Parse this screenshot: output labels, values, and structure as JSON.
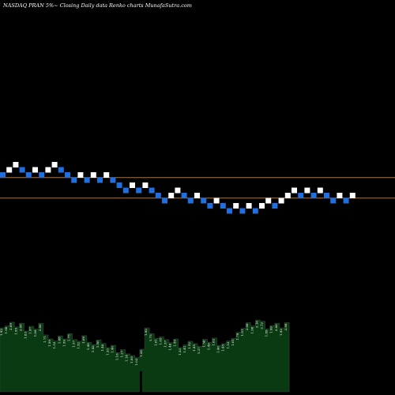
{
  "chart_data": {
    "type": "renko",
    "title": "NASDAQ PRAN 5%~ Closing Daily data Renko charts MunafaSutra.com",
    "colors": {
      "background": "#000000",
      "up_brick": "#ffffff",
      "down_brick": "#1f6fe0",
      "reference_line": "#b87333",
      "volume_fill": "#0a3a12",
      "volume_stroke": "#3c3c3c"
    },
    "bricks": [
      {
        "level": 10,
        "dir": "down"
      },
      {
        "level": 11,
        "dir": "up"
      },
      {
        "level": 12,
        "dir": "up"
      },
      {
        "level": 11,
        "dir": "down"
      },
      {
        "level": 10,
        "dir": "down"
      },
      {
        "level": 11,
        "dir": "up"
      },
      {
        "level": 10,
        "dir": "down"
      },
      {
        "level": 11,
        "dir": "up"
      },
      {
        "level": 12,
        "dir": "up"
      },
      {
        "level": 11,
        "dir": "down"
      },
      {
        "level": 10,
        "dir": "down"
      },
      {
        "level": 9,
        "dir": "down"
      },
      {
        "level": 10,
        "dir": "up"
      },
      {
        "level": 9,
        "dir": "down"
      },
      {
        "level": 10,
        "dir": "up"
      },
      {
        "level": 9,
        "dir": "down"
      },
      {
        "level": 10,
        "dir": "up"
      },
      {
        "level": 9,
        "dir": "down"
      },
      {
        "level": 8,
        "dir": "down"
      },
      {
        "level": 7,
        "dir": "down"
      },
      {
        "level": 8,
        "dir": "up"
      },
      {
        "level": 7,
        "dir": "down"
      },
      {
        "level": 8,
        "dir": "up"
      },
      {
        "level": 7,
        "dir": "down"
      },
      {
        "level": 6,
        "dir": "down"
      },
      {
        "level": 5,
        "dir": "down"
      },
      {
        "level": 6,
        "dir": "up"
      },
      {
        "level": 7,
        "dir": "up"
      },
      {
        "level": 6,
        "dir": "down"
      },
      {
        "level": 5,
        "dir": "down"
      },
      {
        "level": 6,
        "dir": "up"
      },
      {
        "level": 5,
        "dir": "down"
      },
      {
        "level": 4,
        "dir": "down"
      },
      {
        "level": 5,
        "dir": "up"
      },
      {
        "level": 4,
        "dir": "down"
      },
      {
        "level": 3,
        "dir": "down"
      },
      {
        "level": 4,
        "dir": "up"
      },
      {
        "level": 3,
        "dir": "down"
      },
      {
        "level": 4,
        "dir": "up"
      },
      {
        "level": 3,
        "dir": "down"
      },
      {
        "level": 4,
        "dir": "up"
      },
      {
        "level": 5,
        "dir": "up"
      },
      {
        "level": 4,
        "dir": "down"
      },
      {
        "level": 5,
        "dir": "up"
      },
      {
        "level": 6,
        "dir": "up"
      },
      {
        "level": 7,
        "dir": "up"
      },
      {
        "level": 6,
        "dir": "down"
      },
      {
        "level": 7,
        "dir": "up"
      },
      {
        "level": 6,
        "dir": "down"
      },
      {
        "level": 7,
        "dir": "up"
      },
      {
        "level": 6,
        "dir": "down"
      },
      {
        "level": 5,
        "dir": "down"
      },
      {
        "level": 6,
        "dir": "up"
      },
      {
        "level": 5,
        "dir": "down"
      },
      {
        "level": 6,
        "dir": "up"
      }
    ],
    "reference_levels": [
      9.5,
      5.5
    ],
    "volume_labels": [
      "1.92",
      "1.98",
      "2.09",
      "1.95",
      "2.06",
      "1.83",
      "1.97",
      "1.89",
      "2.06",
      "1.71",
      "1.59",
      "1.53",
      "1.68",
      "1.59",
      "1.75",
      "1.57",
      "1.52",
      "1.69",
      "1.49",
      "1.42",
      "1.56",
      "1.46",
      "1.33",
      "1.40",
      "1.18",
      "1.27",
      "1.14",
      "1.09",
      "1.03",
      "1.28",
      "1.92",
      "1.75",
      "1.61",
      "1.65",
      "1.57",
      "1.48",
      "1.59",
      "1.33",
      "1.41",
      "1.52",
      "1.45",
      "1.37",
      "1.58",
      "1.49",
      "1.62",
      "1.40",
      "1.45",
      "1.53",
      "1.61",
      "1.79",
      "1.91",
      "2.08",
      "1.98",
      "2.16",
      "2.12",
      "1.89",
      "1.99",
      "2.06",
      "1.92",
      "2.08"
    ]
  }
}
